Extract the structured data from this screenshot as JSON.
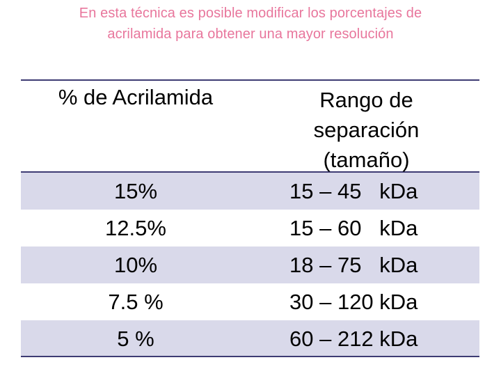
{
  "title": {
    "line1": "En esta técnica es posible modificar los porcentajes de",
    "line2": "acrilamida para obtener una mayor resolución"
  },
  "table": {
    "headers": {
      "col1": "% de Acrilamida",
      "col2_lines": [
        "Rango de",
        "separación",
        "(tamaño)"
      ]
    },
    "rows": [
      {
        "acrilamida": "15%",
        "rango": "15 – 45   kDa"
      },
      {
        "acrilamida": "12.5%",
        "rango": "15 – 60   kDa"
      },
      {
        "acrilamida": "10%",
        "rango": "18 – 75   kDa"
      },
      {
        "acrilamida": "7.5 %",
        "rango": "30 – 120 kDa"
      },
      {
        "acrilamida": "5 %",
        "rango": "60 – 212 kDa"
      }
    ],
    "colors": {
      "rule": "#3d3b73",
      "shaded_row": "#d9d9ea",
      "title_text": "#e8769c"
    }
  }
}
